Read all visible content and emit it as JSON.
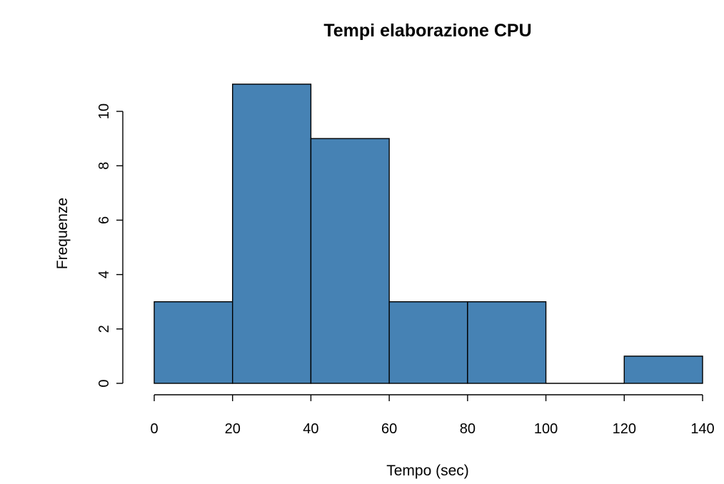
{
  "chart_data": {
    "type": "bar",
    "subtype": "histogram",
    "title": "Tempi elaborazione CPU",
    "xlabel": "Tempo (sec)",
    "ylabel": "Frequenze",
    "bins": [
      {
        "start": 0,
        "end": 20,
        "count": 3
      },
      {
        "start": 20,
        "end": 40,
        "count": 11
      },
      {
        "start": 40,
        "end": 60,
        "count": 9
      },
      {
        "start": 60,
        "end": 80,
        "count": 3
      },
      {
        "start": 80,
        "end": 100,
        "count": 3
      },
      {
        "start": 100,
        "end": 120,
        "count": 0
      },
      {
        "start": 120,
        "end": 140,
        "count": 1
      }
    ],
    "xticks": [
      0,
      20,
      40,
      60,
      80,
      100,
      120,
      140
    ],
    "xtick_labels": [
      "0",
      "20",
      "40",
      "60",
      "80",
      "100",
      "120",
      "140"
    ],
    "yticks": [
      0,
      2,
      4,
      6,
      8,
      10
    ],
    "ytick_labels": [
      "0",
      "2",
      "4",
      "6",
      "8",
      "10"
    ],
    "xlim": [
      0,
      140
    ],
    "ylim": [
      0,
      11
    ],
    "bar_color": "#4682B4",
    "edge_color": "#000000",
    "grid": false,
    "legend": "none"
  }
}
